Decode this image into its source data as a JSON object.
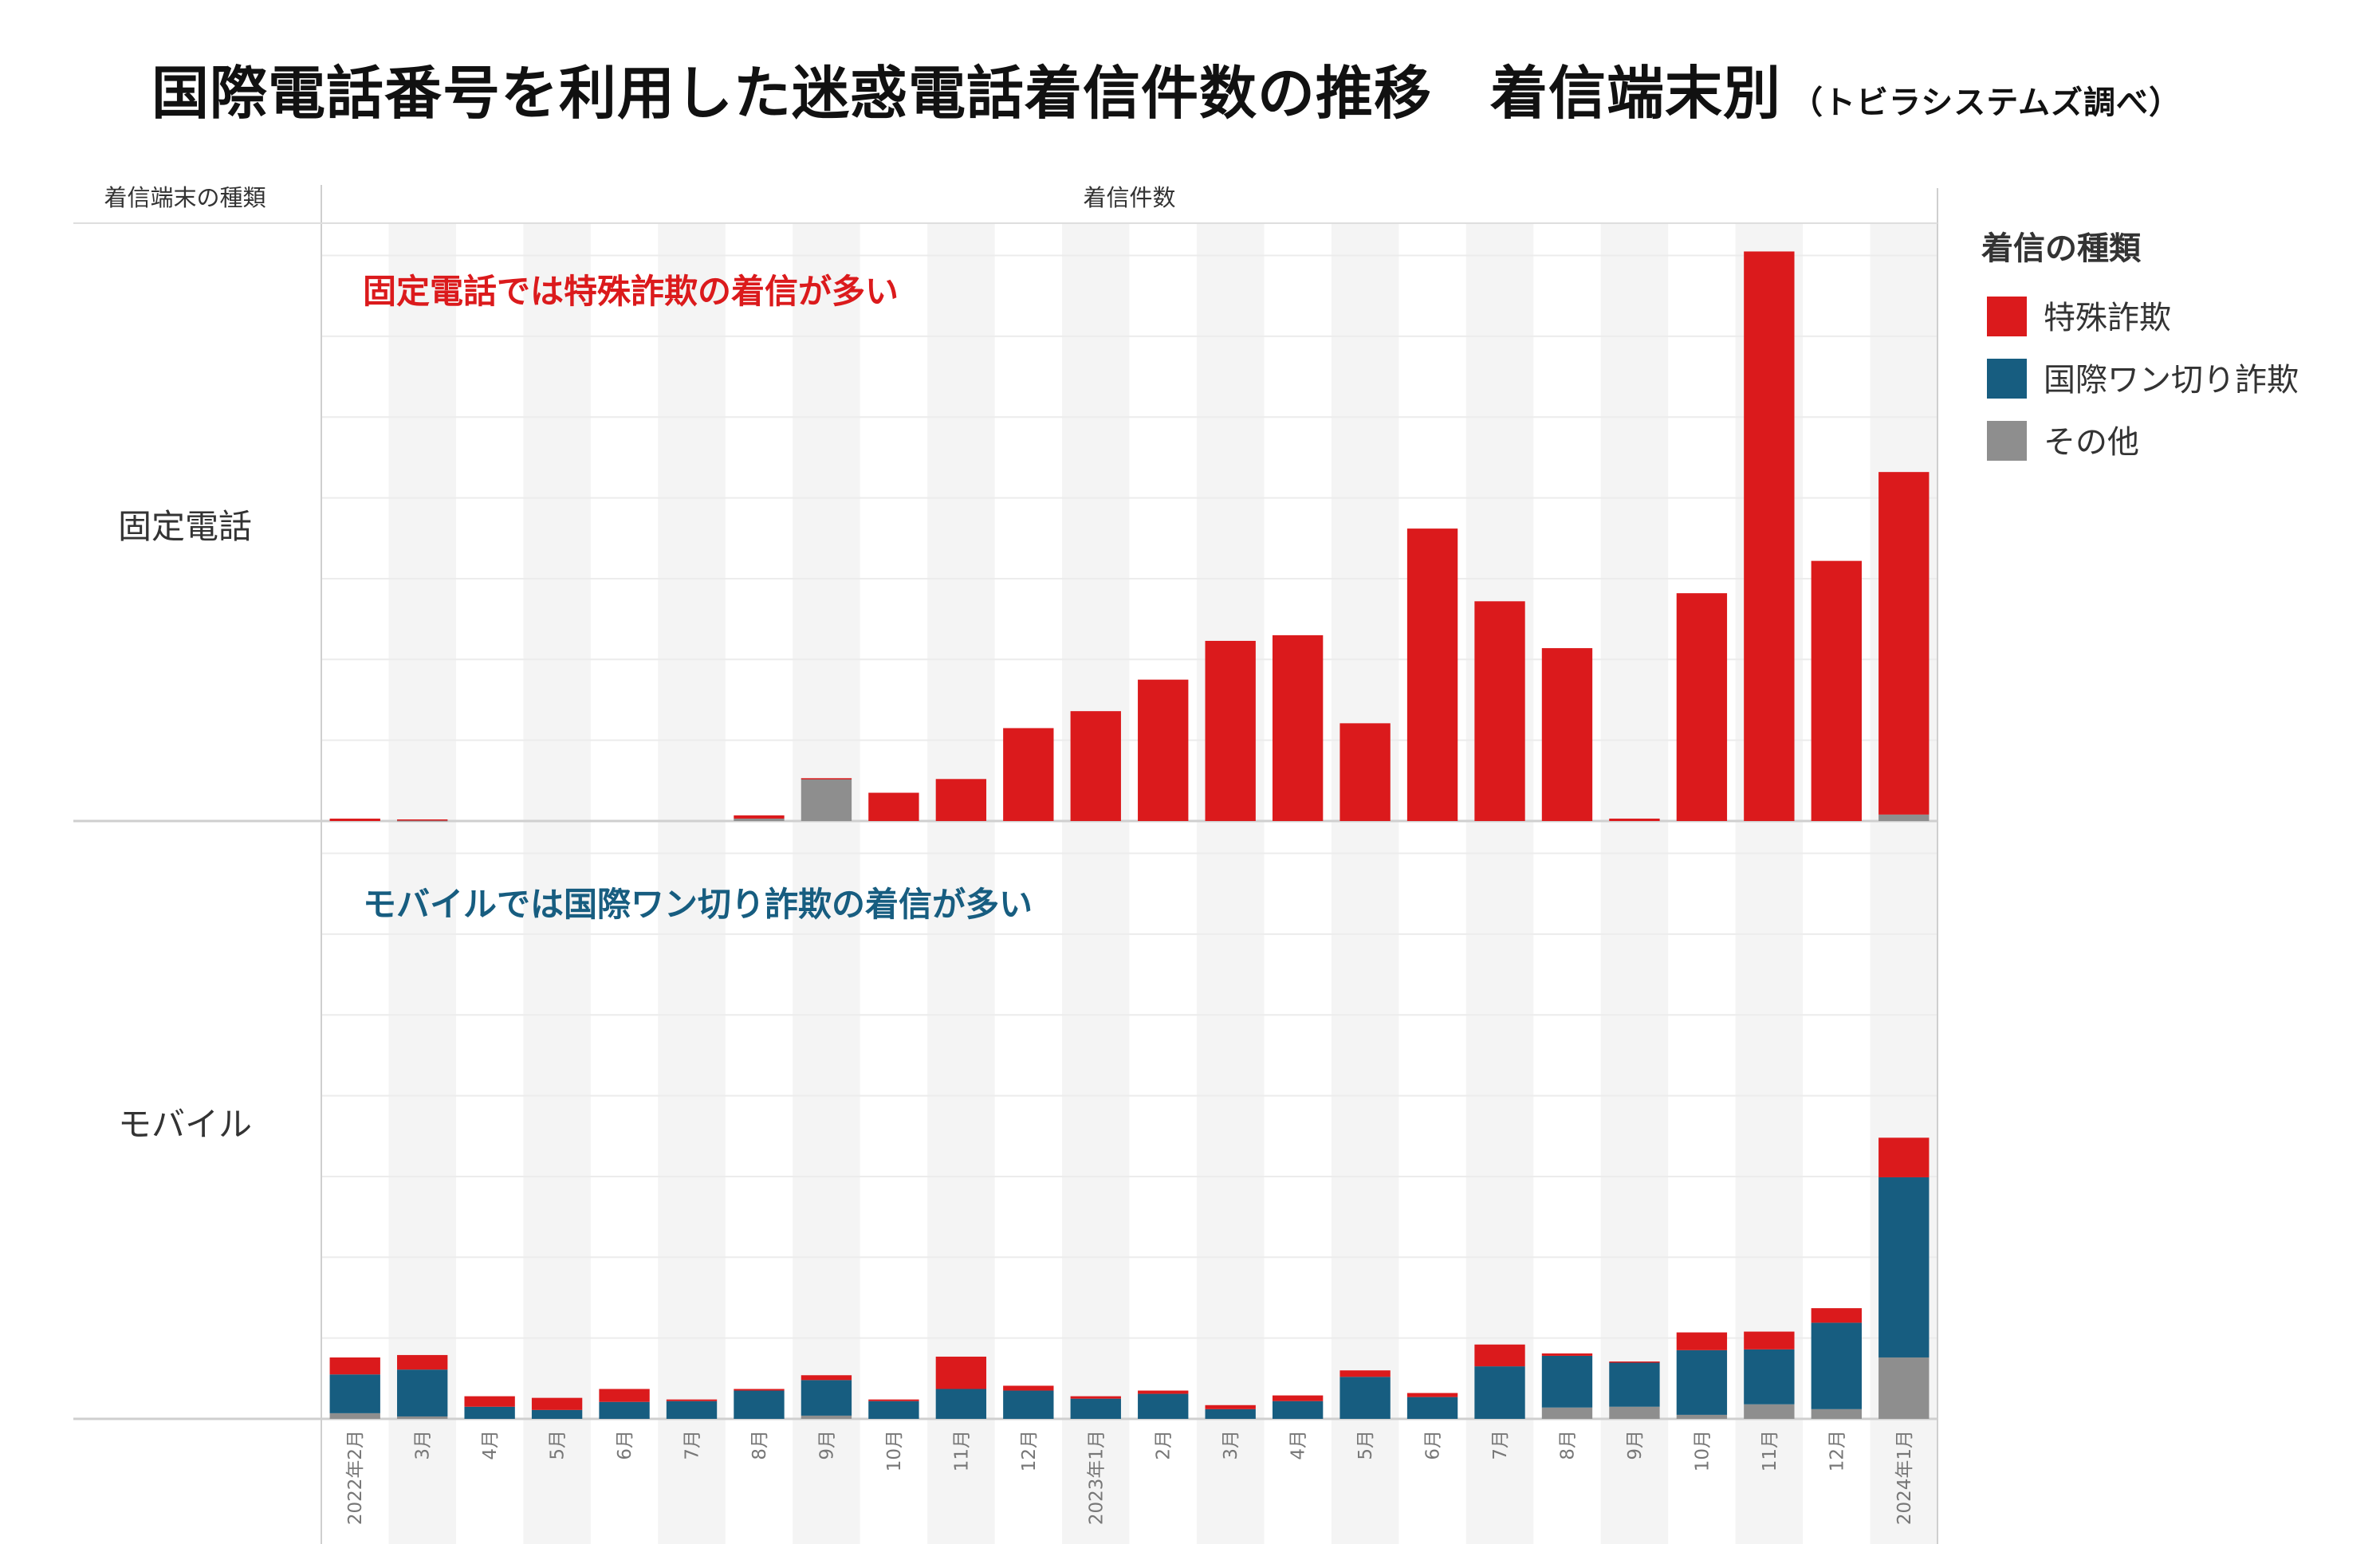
{
  "title": "国際電話番号を利用した迷惑電話着信件数の推移　着信端末別",
  "subtitle": "（トビラシステムズ調べ）",
  "chart_data": {
    "type": "bar",
    "stacked": true,
    "row_header": "着信端末の種類",
    "column_header": "着信件数",
    "categories": [
      "2022年2月",
      "3月",
      "4月",
      "5月",
      "6月",
      "7月",
      "8月",
      "9月",
      "10月",
      "11月",
      "12月",
      "2023年1月",
      "2月",
      "3月",
      "4月",
      "5月",
      "6月",
      "7月",
      "8月",
      "9月",
      "10月",
      "11月",
      "12月",
      "2024年1月"
    ],
    "legend_title": "着信の種類",
    "legend_position": "right",
    "series_names": [
      "特殊詐欺",
      "国際ワン切り詐欺",
      "その他"
    ],
    "colors": {
      "特殊詐欺": "#db1a1c",
      "国際ワン切り詐欺": "#175d80",
      "その他": "#8e8e8e"
    },
    "panels": [
      {
        "name": "固定電話",
        "annotation": "固定電話では特殊詐欺の着信が多い",
        "annotation_color": "#db1a1c",
        "series": [
          {
            "name": "特殊詐欺",
            "values": [
              3,
              1,
              0,
              0,
              0,
              0,
              4,
              1,
              35,
              52,
              115,
              136,
              175,
              223,
              230,
              121,
              362,
              272,
              214,
              3,
              282,
              705,
              322,
              424
            ]
          },
          {
            "name": "国際ワン切り詐欺",
            "values": [
              0,
              0,
              0,
              0,
              0,
              0,
              0,
              0,
              0,
              0,
              0,
              0,
              0,
              0,
              0,
              0,
              0,
              0,
              0,
              0,
              0,
              0,
              0,
              0
            ]
          },
          {
            "name": "その他",
            "values": [
              0,
              1,
              0,
              0,
              0,
              0,
              3,
              52,
              0,
              0,
              0,
              0,
              0,
              0,
              0,
              0,
              0,
              0,
              0,
              0,
              0,
              0,
              0,
              8
            ]
          }
        ]
      },
      {
        "name": "モバイル",
        "annotation": "モバイルでは国際ワン切り詐欺の着信が多い",
        "annotation_color": "#175d80",
        "series": [
          {
            "name": "特殊詐欺",
            "values": [
              21,
              18,
              13,
              15,
              16,
              2,
              2,
              6,
              2,
              40,
              6,
              3,
              4,
              5,
              7,
              8,
              5,
              27,
              3,
              1,
              22,
              22,
              18,
              49
            ]
          },
          {
            "name": "国際ワン切り詐欺",
            "values": [
              48,
              58,
              15,
              11,
              21,
              22,
              35,
              44,
              22,
              37,
              35,
              25,
              31,
              12,
              22,
              52,
              27,
              65,
              64,
              55,
              80,
              68,
              107,
              223
            ]
          },
          {
            "name": "その他",
            "values": [
              7,
              3,
              0,
              0,
              0,
              0,
              0,
              4,
              0,
              0,
              0,
              0,
              0,
              0,
              0,
              0,
              0,
              0,
              14,
              15,
              5,
              18,
              12,
              76
            ]
          }
        ]
      }
    ],
    "ylim": [
      0,
      740
    ],
    "grid": true
  }
}
